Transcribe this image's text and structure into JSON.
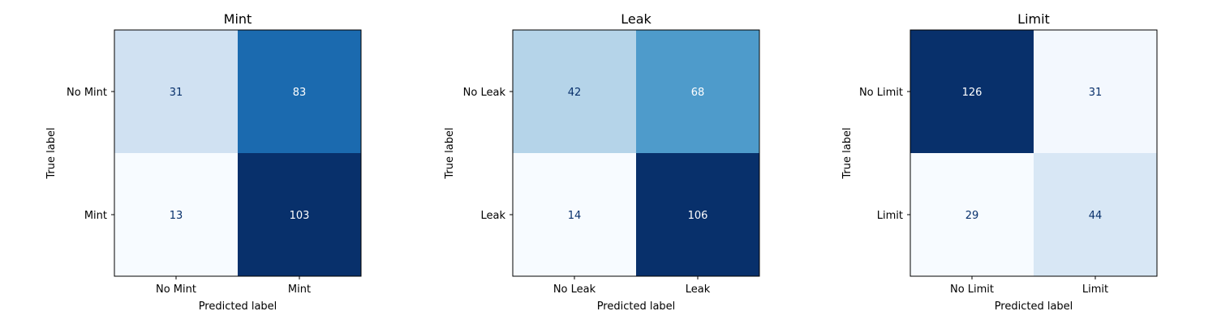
{
  "chart_data": [
    {
      "type": "heatmap",
      "title": "Mint",
      "xlabel": "Predicted label",
      "ylabel": "True label",
      "x_categories": [
        "No Mint",
        "Mint"
      ],
      "y_categories": [
        "No Mint",
        "Mint"
      ],
      "values": [
        [
          31,
          83
        ],
        [
          13,
          103
        ]
      ],
      "colormap": "Blues",
      "grid": false
    },
    {
      "type": "heatmap",
      "title": "Leak",
      "xlabel": "Predicted label",
      "ylabel": "True label",
      "x_categories": [
        "No Leak",
        "Leak"
      ],
      "y_categories": [
        "No Leak",
        "Leak"
      ],
      "values": [
        [
          42,
          68
        ],
        [
          14,
          106
        ]
      ],
      "colormap": "Blues",
      "grid": false
    },
    {
      "type": "heatmap",
      "title": "Limit",
      "xlabel": "Predicted label",
      "ylabel": "True label",
      "x_categories": [
        "No Limit",
        "Limit"
      ],
      "y_categories": [
        "No Limit",
        "Limit"
      ],
      "values": [
        [
          126,
          31
        ],
        [
          29,
          44
        ]
      ],
      "colormap": "Blues",
      "grid": false
    }
  ],
  "colors": {
    "low": "#f7fbff",
    "high": "#08306b",
    "text_dark": "#08306b",
    "text_light": "#ffffff"
  }
}
